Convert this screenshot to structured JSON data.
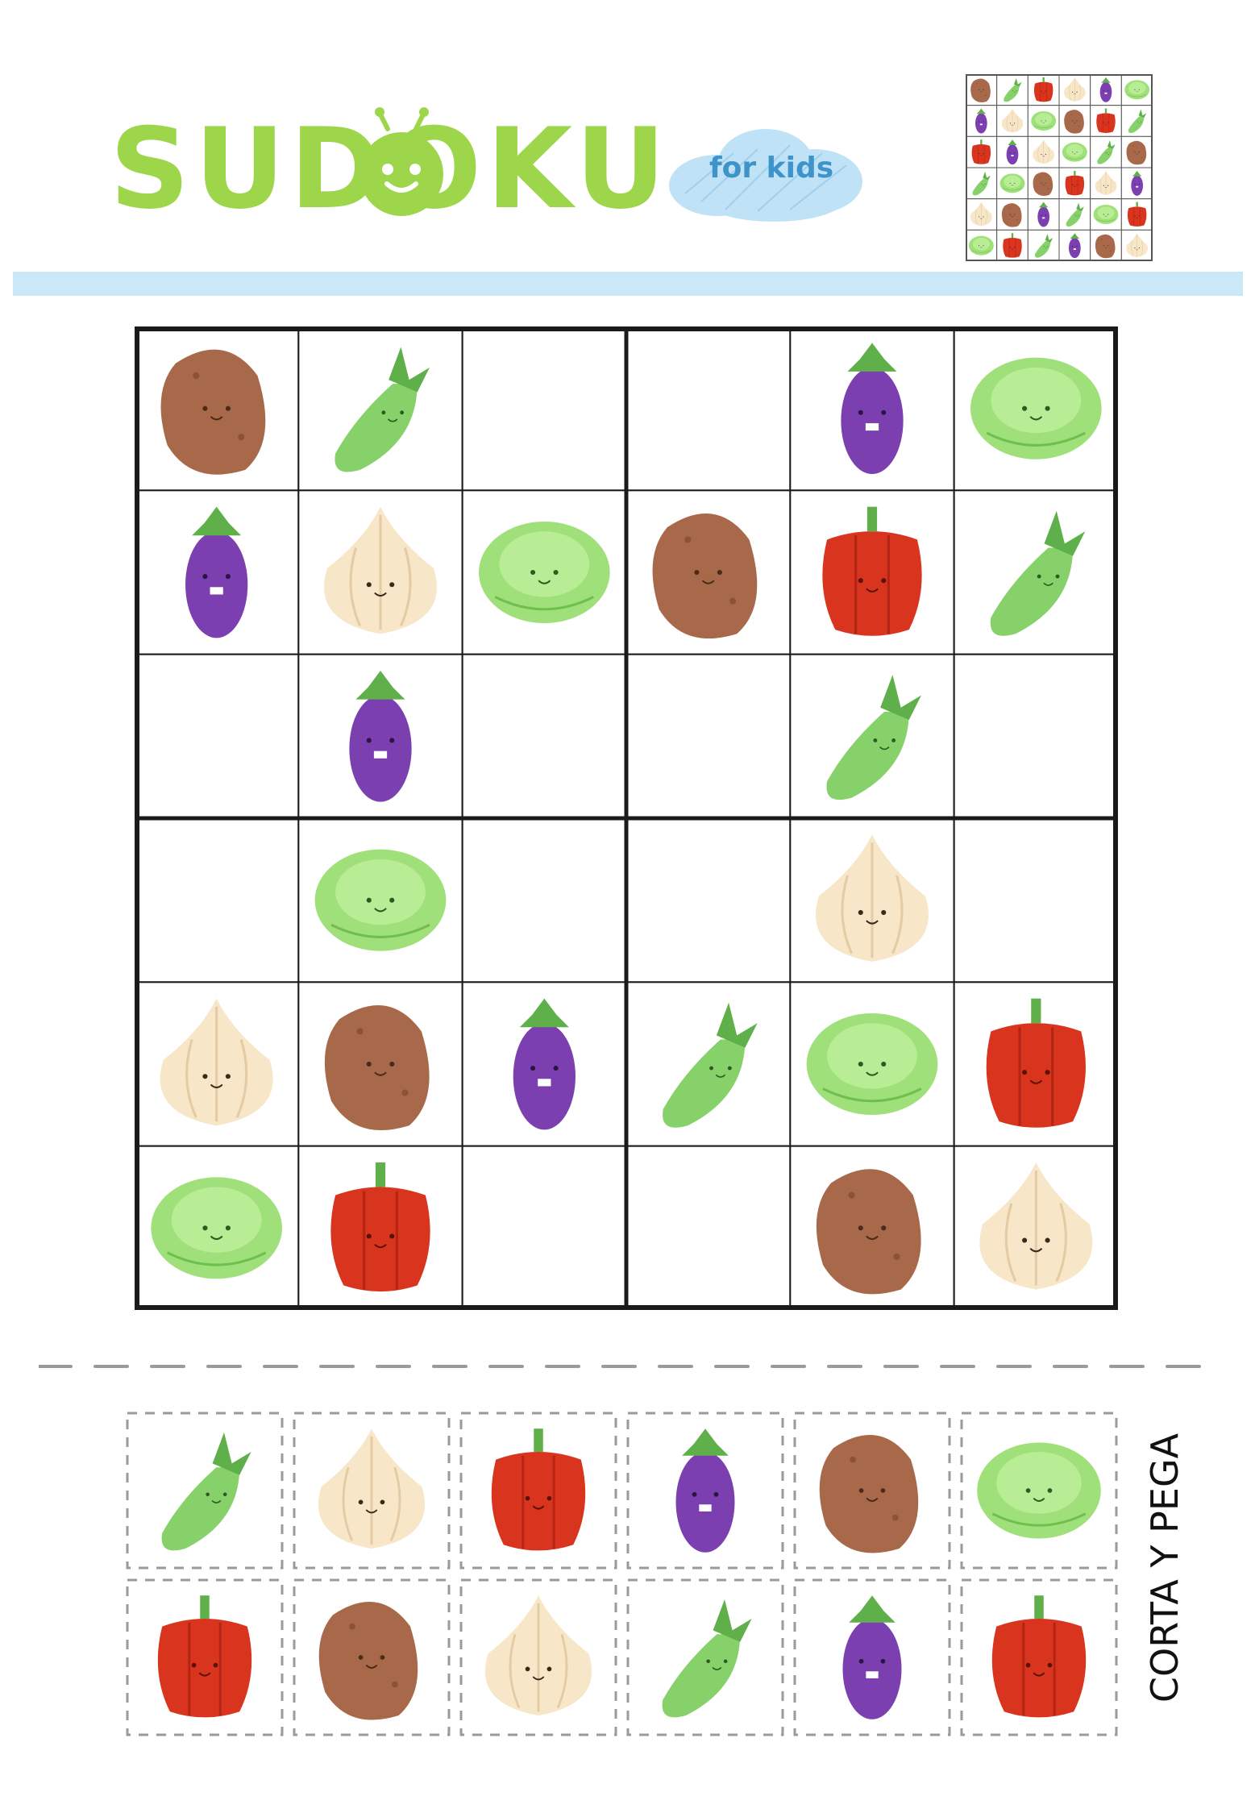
{
  "header": {
    "logo_text": "SUDOKU",
    "subtitle": "for kids"
  },
  "colors": {
    "logo_green": "#9dd64a",
    "stripe_blue": "#cbe8f8",
    "cloud_blue": "#bfe2f6",
    "kids_text": "#3e94c9",
    "grid_line": "#1a1a1a"
  },
  "legend": {
    "potato": "potato-icon",
    "peas": "pea-pod-icon",
    "eggplant": "eggplant-icon",
    "cabbage": "cabbage-icon",
    "garlic": "garlic-icon",
    "pepper": "red-pepper-icon"
  },
  "puzzle": [
    [
      "potato",
      "peas",
      "",
      "",
      "eggplant",
      "cabbage"
    ],
    [
      "eggplant",
      "garlic",
      "cabbage",
      "potato",
      "pepper",
      "peas"
    ],
    [
      "",
      "eggplant",
      "",
      "",
      "peas",
      ""
    ],
    [
      "",
      "cabbage",
      "",
      "",
      "garlic",
      ""
    ],
    [
      "garlic",
      "potato",
      "eggplant",
      "peas",
      "cabbage",
      "pepper"
    ],
    [
      "cabbage",
      "pepper",
      "",
      "",
      "potato",
      "garlic"
    ]
  ],
  "solution_thumbnail": [
    [
      "potato",
      "peas",
      "pepper",
      "garlic",
      "eggplant",
      "cabbage"
    ],
    [
      "eggplant",
      "garlic",
      "cabbage",
      "potato",
      "pepper",
      "peas"
    ],
    [
      "pepper",
      "eggplant",
      "garlic",
      "cabbage",
      "peas",
      "potato"
    ],
    [
      "peas",
      "cabbage",
      "potato",
      "pepper",
      "garlic",
      "eggplant"
    ],
    [
      "garlic",
      "potato",
      "eggplant",
      "peas",
      "cabbage",
      "pepper"
    ],
    [
      "cabbage",
      "pepper",
      "peas",
      "eggplant",
      "potato",
      "garlic"
    ]
  ],
  "cutouts": [
    [
      "peas",
      "garlic",
      "pepper",
      "eggplant",
      "potato",
      "cabbage"
    ],
    [
      "pepper",
      "potato",
      "garlic",
      "peas",
      "eggplant",
      "pepper"
    ]
  ],
  "cut_label": "CORTA Y PEGA"
}
